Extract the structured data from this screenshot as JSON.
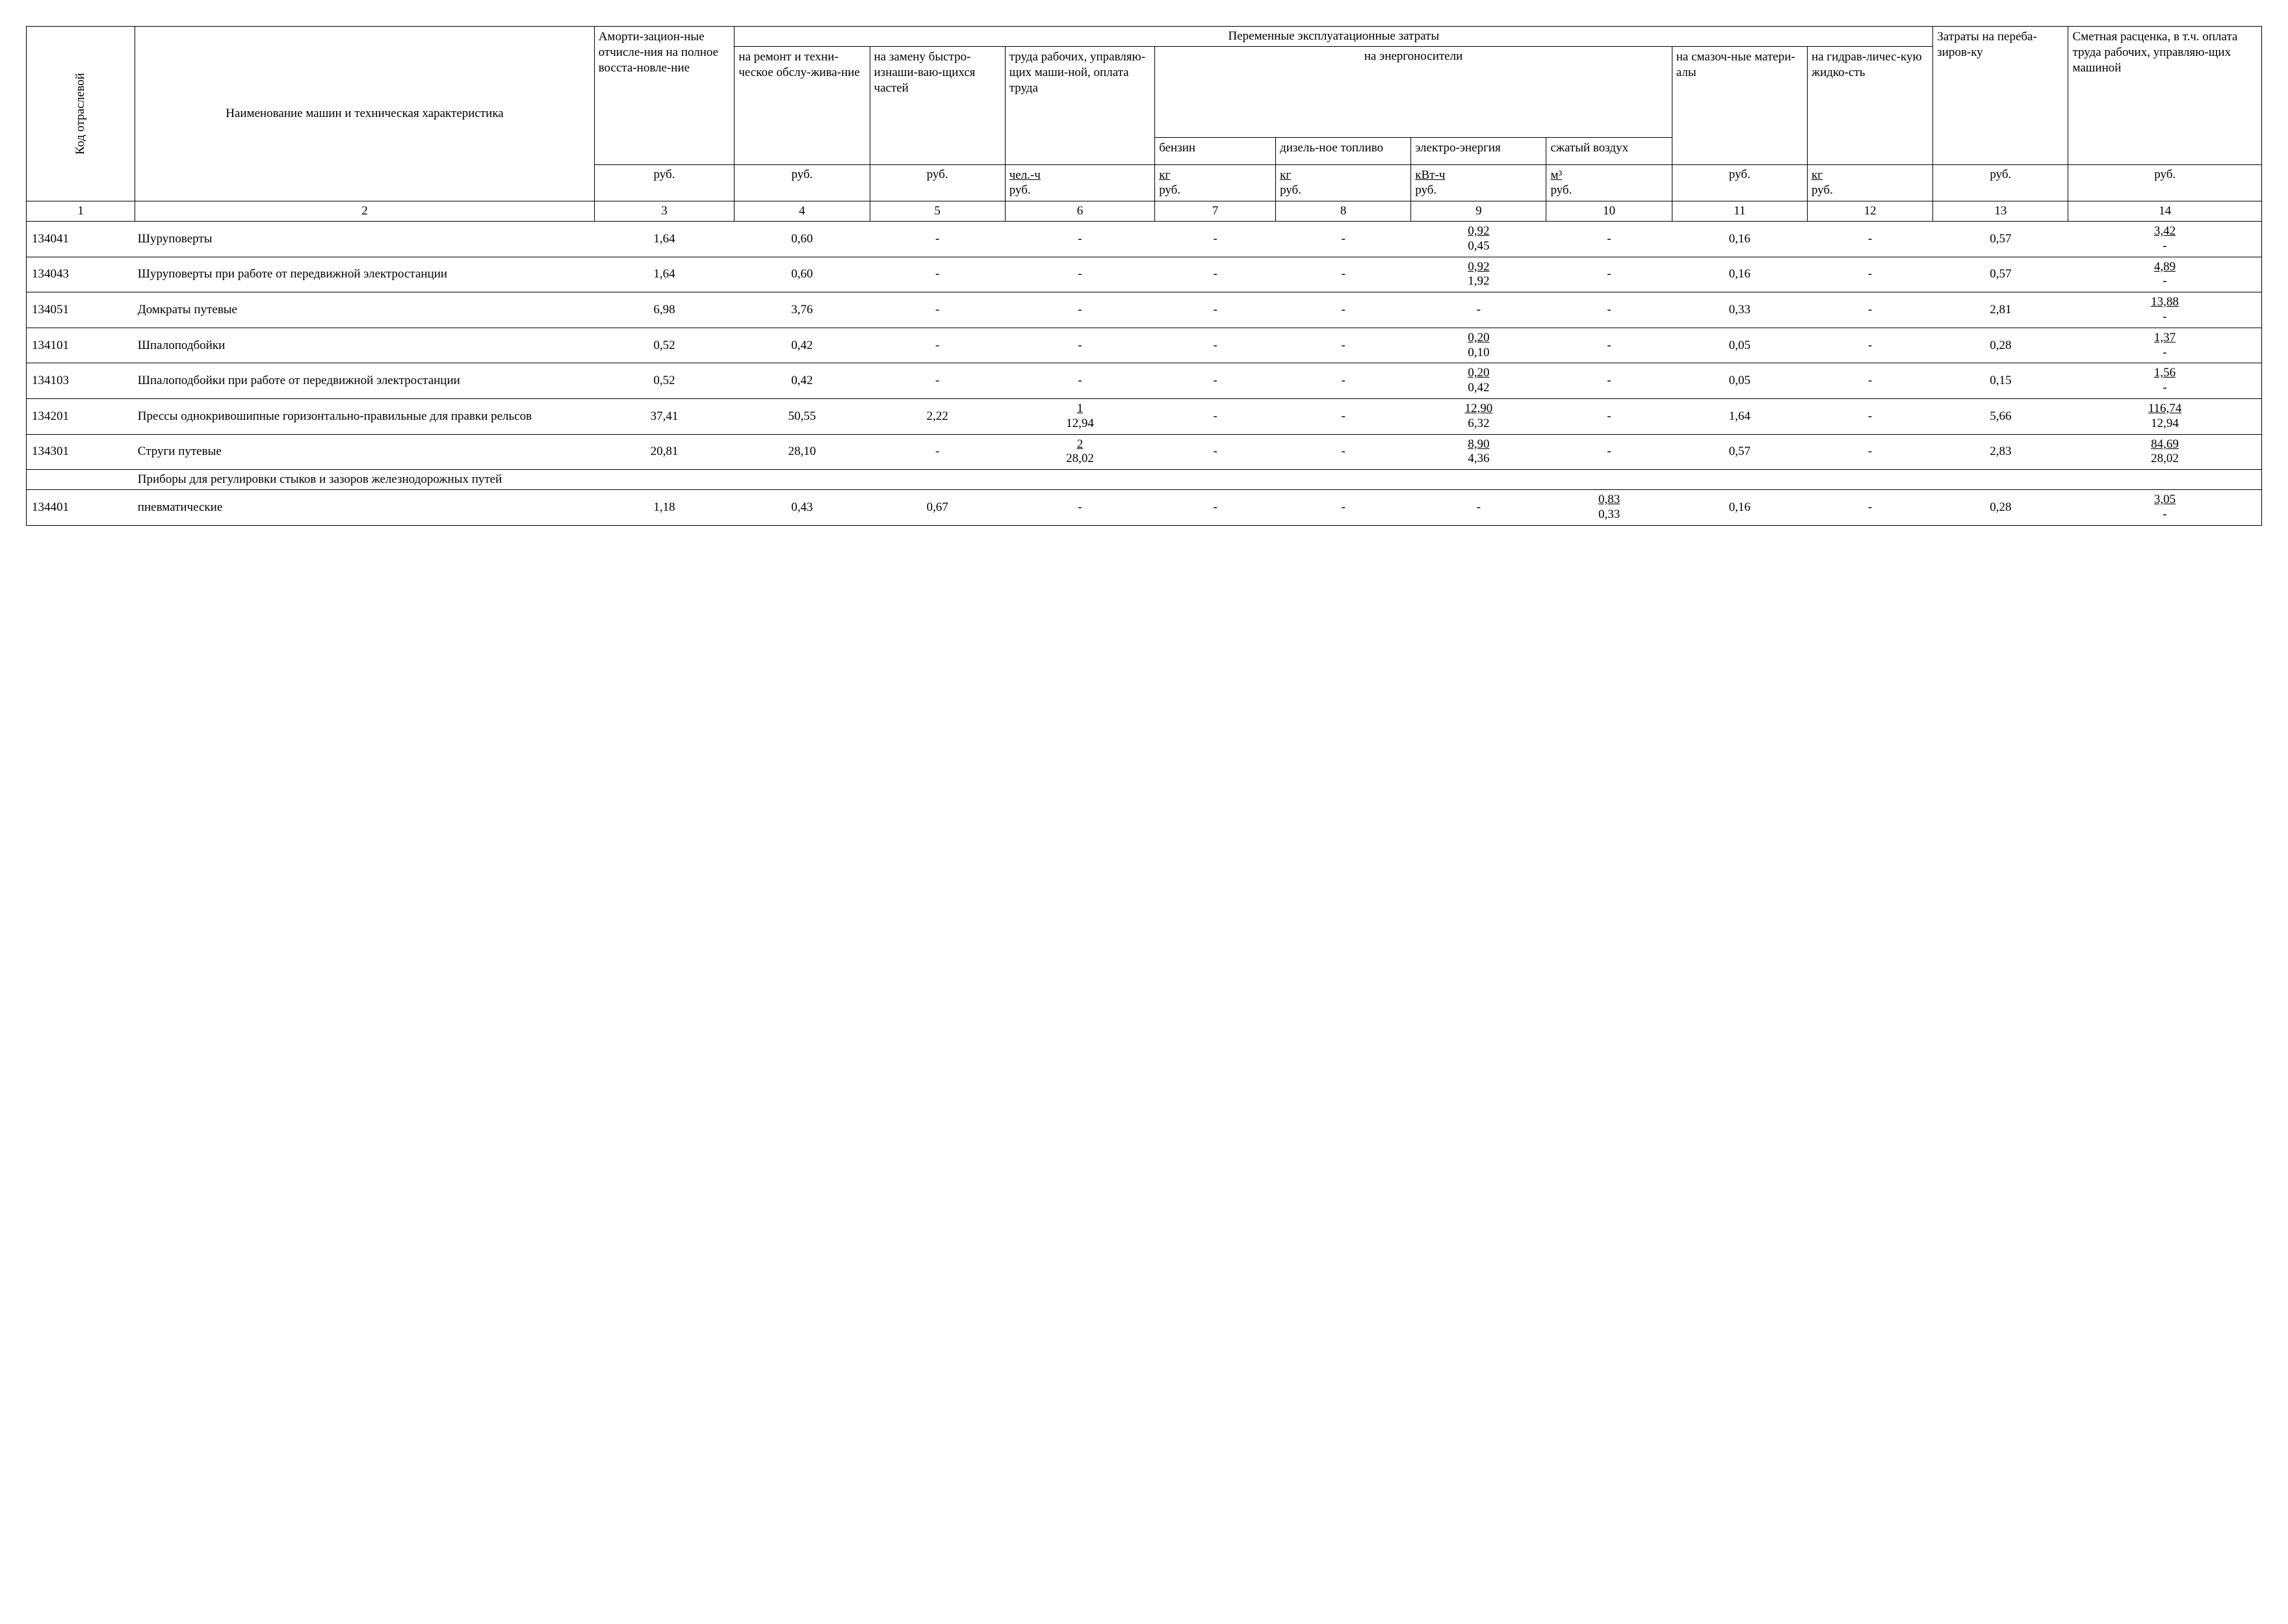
{
  "table": {
    "type": "table",
    "colors": {
      "border": "#000000",
      "text": "#000000",
      "background": "#ffffff"
    },
    "font": {
      "family": "Times New Roman",
      "base_size_pt": 14
    },
    "header": {
      "col1_rot": "Код отраслевой",
      "col2": "Наименование машин и техническая характеристика",
      "col3": "Аморти-зацион-ные отчисле-ния на полное восста-новле-ние",
      "col3_unit": "руб.",
      "group_variable": "Переменные эксплуатационные затраты",
      "col4": "на ремонт и техни-ческое обслу-жива-ние",
      "col4_unit": "руб.",
      "col5": "на замену быстро-изнаши-ваю-щихся частей",
      "col5_unit": "руб.",
      "col6": "труда рабочих, управляю-щих маши-ной, оплата труда",
      "col6_unit_top": "чел.-ч",
      "col6_unit_bot": "руб.",
      "group_energy": "на энергоносители",
      "col7": "бензин",
      "col7_unit_top": "кг",
      "col7_unit_bot": "руб.",
      "col8": "дизель-ное топливо",
      "col8_unit_top": "кг",
      "col8_unit_bot": "руб.",
      "col9": "электро-энергия",
      "col9_unit_top": "кВт-ч",
      "col9_unit_bot": "руб.",
      "col10": "сжатый воздух",
      "col10_unit_top": "м³",
      "col10_unit_bot": "руб.",
      "col11": "на смазоч-ные матери-алы",
      "col11_unit": "руб.",
      "col12": "на гидрав-личес-кую жидко-сть",
      "col12_unit_top": "кг",
      "col12_unit_bot": "руб.",
      "col13": "Затраты на переба-зиров-ку",
      "col13_unit": "руб.",
      "col14": "Сметная расценка, в т.ч. оплата труда рабочих, управляю-щих машиной",
      "col14_unit": "руб."
    },
    "colnums": [
      "1",
      "2",
      "3",
      "4",
      "5",
      "6",
      "7",
      "8",
      "9",
      "10",
      "11",
      "12",
      "13",
      "14"
    ],
    "rows": [
      {
        "code": "134041",
        "name": "Шуруповерты",
        "v3": "1,64",
        "v4": "0,60",
        "v5": "-",
        "v6": "-",
        "v7": "-",
        "v8": "-",
        "v9_top": "0,92",
        "v9_bot": "0,45",
        "v10": "-",
        "v11": "0,16",
        "v12": "-",
        "v13": "0,57",
        "v14_top": "3,42",
        "v14_bot": "-"
      },
      {
        "code": "134043",
        "name": "Шуруповерты при работе от передвижной электростанции",
        "v3": "1,64",
        "v4": "0,60",
        "v5": "-",
        "v6": "-",
        "v7": "-",
        "v8": "-",
        "v9_top": "0,92",
        "v9_bot": "1,92",
        "v10": "-",
        "v11": "0,16",
        "v12": "-",
        "v13": "0,57",
        "v14_top": "4,89",
        "v14_bot": "-"
      },
      {
        "code": "134051",
        "name": "Домкраты путевые",
        "v3": "6,98",
        "v4": "3,76",
        "v5": "-",
        "v6": "-",
        "v7": "-",
        "v8": "-",
        "v9": "-",
        "v10": "-",
        "v11": "0,33",
        "v12": "-",
        "v13": "2,81",
        "v14_top": "13,88",
        "v14_bot": "-"
      },
      {
        "code": "134101",
        "name": "Шпалоподбойки",
        "v3": "0,52",
        "v4": "0,42",
        "v5": "-",
        "v6": "-",
        "v7": "-",
        "v8": "-",
        "v9_top": "0,20",
        "v9_bot": "0,10",
        "v10": "-",
        "v11": "0,05",
        "v12": "-",
        "v13": "0,28",
        "v14_top": "1,37",
        "v14_bot": "-"
      },
      {
        "code": "134103",
        "name": "Шпалоподбойки при работе от передвижной электростанции",
        "v3": "0,52",
        "v4": "0,42",
        "v5": "-",
        "v6": "-",
        "v7": "-",
        "v8": "-",
        "v9_top": "0,20",
        "v9_bot": "0,42",
        "v10": "-",
        "v11": "0,05",
        "v12": "-",
        "v13": "0,15",
        "v14_top": "1,56",
        "v14_bot": "-"
      },
      {
        "code": "134201",
        "name": "Прессы однокривошипные горизонтально-правильные для правки рельсов",
        "v3": "37,41",
        "v4": "50,55",
        "v5": "2,22",
        "v6_top": "1",
        "v6_bot": "12,94",
        "v7": "-",
        "v8": "-",
        "v9_top": "12,90",
        "v9_bot": "6,32",
        "v10": "-",
        "v11": "1,64",
        "v12": "-",
        "v13": "5,66",
        "v14_top": "116,74",
        "v14_bot": "12,94"
      },
      {
        "code": "134301",
        "name": "Струги путевые",
        "v3": "20,81",
        "v4": "28,10",
        "v5": "-",
        "v6_top": "2",
        "v6_bot": "28,02",
        "v7": "-",
        "v8": "-",
        "v9_top": "8,90",
        "v9_bot": "4,36",
        "v10": "-",
        "v11": "0,57",
        "v12": "-",
        "v13": "2,83",
        "v14_top": "84,69",
        "v14_bot": "28,02"
      },
      {
        "section": "Приборы для регулировки стыков и зазоров железнодорожных путей"
      },
      {
        "code": "134401",
        "name": "пневматические",
        "v3": "1,18",
        "v4": "0,43",
        "v5": "0,67",
        "v6": "-",
        "v7": "-",
        "v8": "-",
        "v9": "-",
        "v10_top": "0,83",
        "v10_bot": "0,33",
        "v11": "0,16",
        "v12": "-",
        "v13": "0,28",
        "v14_top": "3,05",
        "v14_bot": "-"
      }
    ]
  }
}
